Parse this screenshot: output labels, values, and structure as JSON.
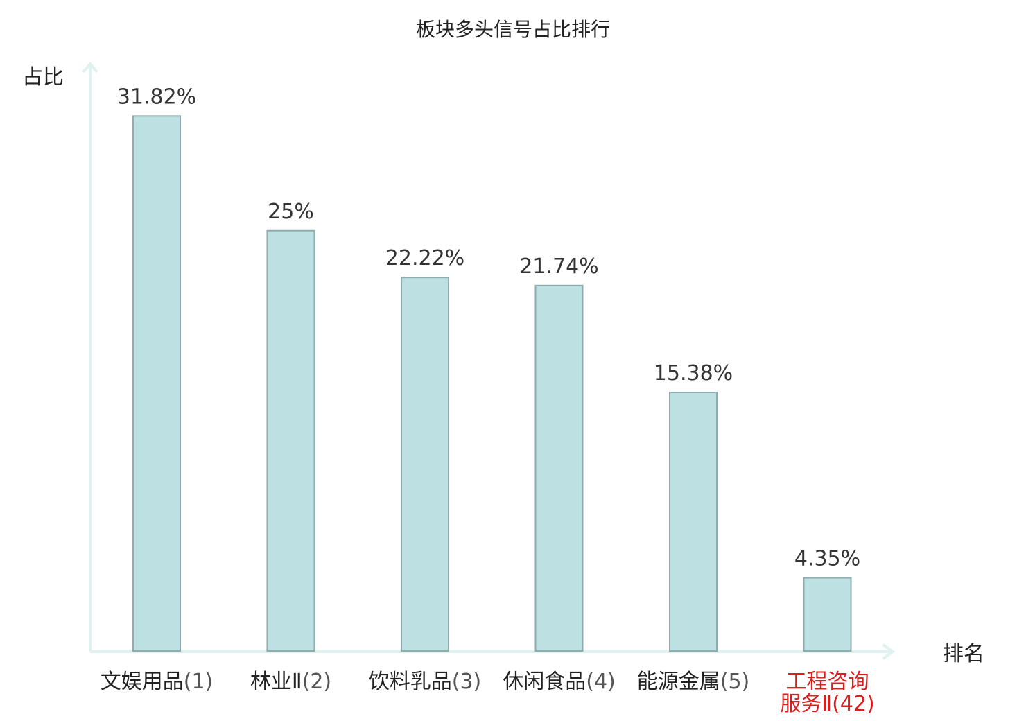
{
  "colors": {
    "bar_fill": "#bde1e3",
    "bar_stroke": "#8eabad",
    "axis": "#dff2ef",
    "highlight_text": "#e01b1b"
  },
  "chart_data": {
    "type": "bar",
    "title": "板块多头信号占比排行",
    "xlabel": "排名",
    "ylabel": "占比",
    "ylim": [
      0,
      35
    ],
    "grid": false,
    "legend": "none",
    "categories": [
      {
        "name": "文娱用品",
        "rank": "(1)",
        "value": 31.82,
        "label": "31.82%",
        "highlight": false
      },
      {
        "name": "林业Ⅱ",
        "rank": "(2)",
        "value": 25,
        "label": "25%",
        "highlight": false
      },
      {
        "name": "饮料乳品",
        "rank": "(3)",
        "value": 22.22,
        "label": "22.22%",
        "highlight": false
      },
      {
        "name": "休闲食品",
        "rank": "(4)",
        "value": 21.74,
        "label": "21.74%",
        "highlight": false
      },
      {
        "name": "能源金属",
        "rank": "(5)",
        "value": 15.38,
        "label": "15.38%",
        "highlight": false
      },
      {
        "name": "工程咨询服务Ⅱ",
        "name_line1": "工程咨询",
        "name_line2": "服务Ⅱ",
        "rank": "(42)",
        "value": 4.35,
        "label": "4.35%",
        "highlight": true
      }
    ]
  }
}
